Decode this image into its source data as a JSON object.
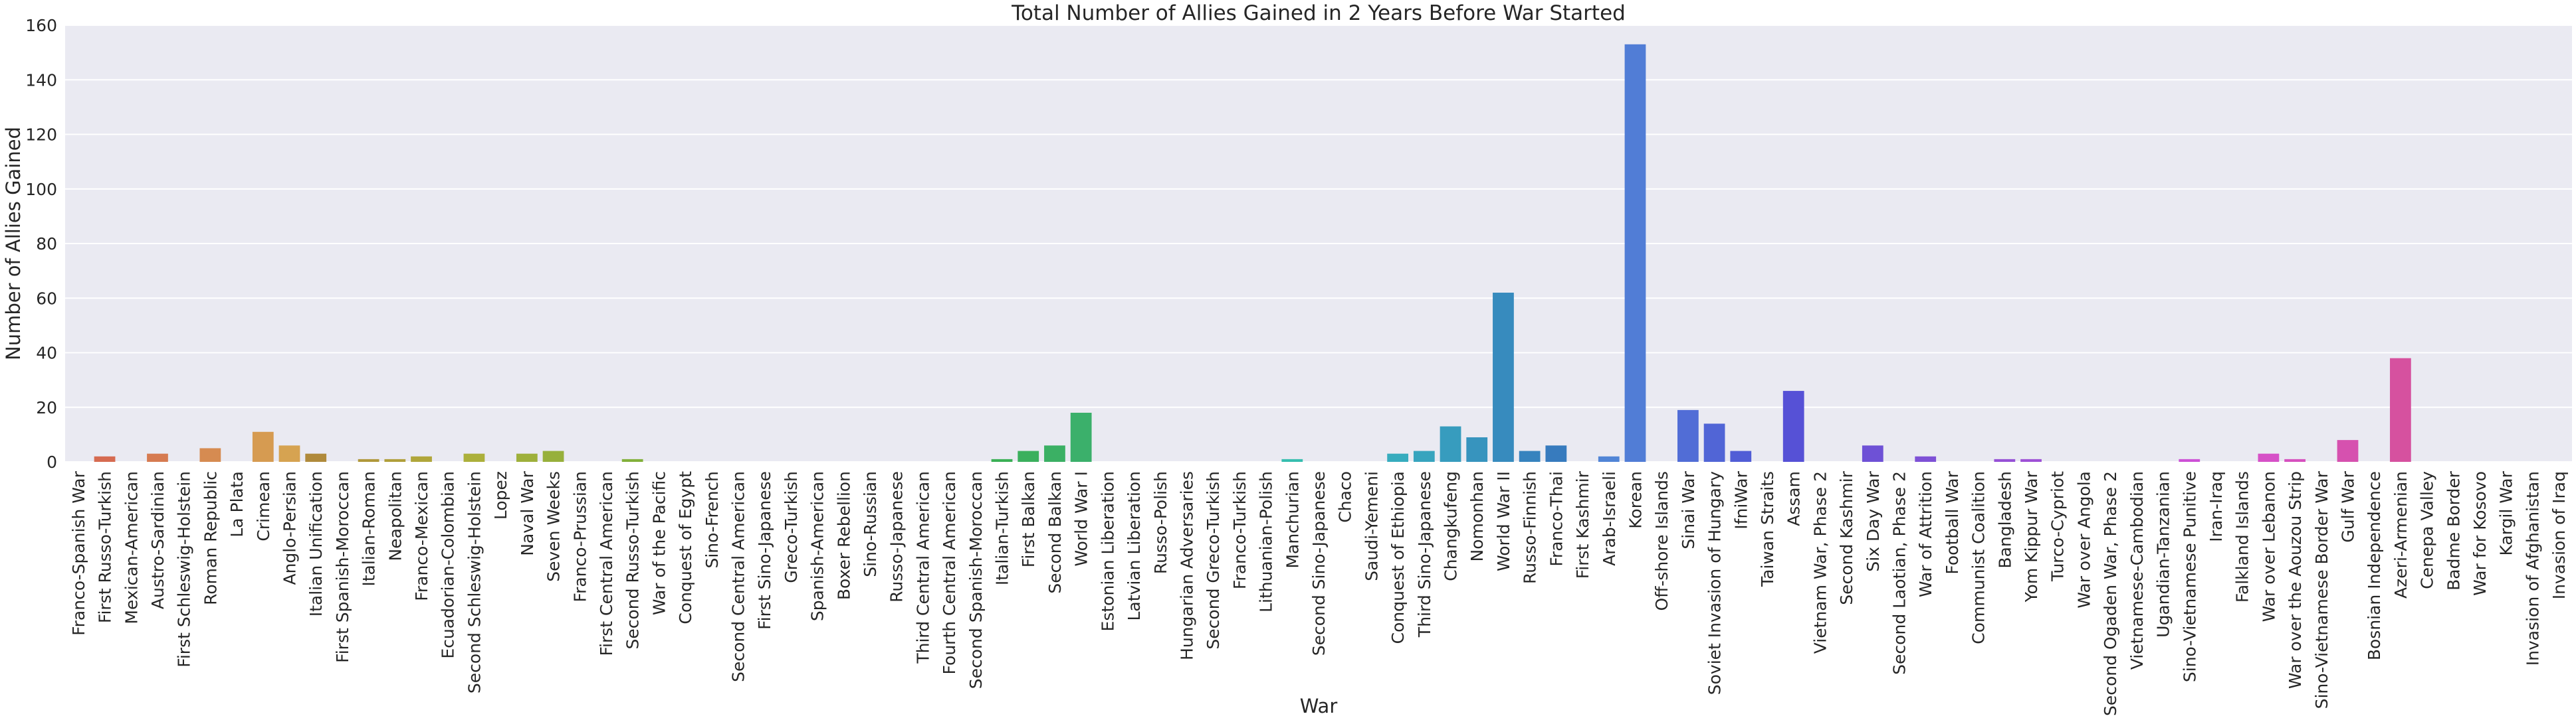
{
  "chart_data": {
    "type": "bar",
    "title": "Total Number of Allies Gained in 2 Years Before War Started",
    "xlabel": "War",
    "ylabel": "Number of Allies Gained",
    "ylim": [
      0,
      160
    ],
    "yticks": [
      0,
      20,
      40,
      60,
      80,
      100,
      120,
      140,
      160
    ],
    "grid": true,
    "legend": "none",
    "background_color": "#EAEAF2",
    "grid_color": "#FFFFFF",
    "categories": [
      "Franco-Spanish War",
      "First Russo-Turkish",
      "Mexican-American",
      "Austro-Sardinian",
      "First Schleswig-Holstein",
      "Roman Republic",
      "La Plata",
      "Crimean",
      "Anglo-Persian",
      "Italian Unification",
      "First Spanish-Moroccan",
      "Italian-Roman",
      "Neapolitan",
      "Franco-Mexican",
      "Ecuadorian-Colombian",
      "Second Schleswig-Holstein",
      "Lopez",
      "Naval War",
      "Seven Weeks",
      "Franco-Prussian",
      "First Central American",
      "Second Russo-Turkish",
      "War of the Pacific",
      "Conquest of Egypt",
      "Sino-French",
      "Second Central American",
      "First Sino-Japanese",
      "Greco-Turkish",
      "Spanish-American",
      "Boxer Rebellion",
      "Sino-Russian",
      "Russo-Japanese",
      "Third Central American",
      "Fourth Central American",
      "Second Spanish-Moroccan",
      "Italian-Turkish",
      "First Balkan",
      "Second Balkan",
      "World War I",
      "Estonian Liberation",
      "Latvian Liberation",
      "Russo-Polish",
      "Hungarian Adversaries",
      "Second Greco-Turkish",
      "Franco-Turkish",
      "Lithuanian-Polish",
      "Manchurian",
      "Second Sino-Japanese",
      "Chaco",
      "Saudi-Yemeni",
      "Conquest of Ethiopia",
      "Third Sino-Japanese",
      "Changkufeng",
      "Nomonhan",
      "World War II",
      "Russo-Finnish",
      "Franco-Thai",
      "First Kashmir",
      "Arab-Israeli",
      "Korean",
      "Off-shore Islands",
      "Sinai War",
      "Soviet Invasion of Hungary",
      "IfniWar",
      "Taiwan Straits",
      "Assam",
      "Vietnam War, Phase 2",
      "Second Kashmir",
      "Six Day War",
      "Second Laotian, Phase 2",
      "War of Attrition",
      "Football War",
      "Communist Coalition",
      "Bangladesh",
      "Yom Kippur War",
      "Turco-Cypriot",
      "War over Angola",
      "Second Ogaden War, Phase 2",
      "Vietnamese-Cambodian",
      "Ugandian-Tanzanian",
      "Sino-Vietnamese Punitive",
      "Iran-Iraq",
      "Falkland Islands",
      "War over Lebanon",
      "War over the Aouzou Strip",
      "Sino-Vietnamese Border War",
      "Gulf War",
      "Bosnian Independence",
      "Azeri-Armenian",
      "Cenepa Valley",
      "Badme Border",
      "War for Kosovo",
      "Kargil War",
      "Invasion of Afghanistan",
      "Invasion of Iraq"
    ],
    "values": [
      0,
      2,
      0,
      3,
      0,
      5,
      0,
      11,
      6,
      3,
      0,
      1,
      1,
      2,
      0,
      3,
      0,
      3,
      4,
      0,
      0,
      1,
      0,
      0,
      0,
      0,
      0,
      0,
      0,
      0,
      0,
      0,
      0,
      0,
      0,
      1,
      4,
      6,
      18,
      0,
      0,
      0,
      0,
      0,
      0,
      0,
      1,
      0,
      0,
      0,
      3,
      4,
      13,
      9,
      62,
      4,
      6,
      0,
      2,
      153,
      0,
      19,
      14,
      4,
      0,
      26,
      0,
      0,
      6,
      0,
      2,
      0,
      0,
      1,
      1,
      0,
      0,
      0,
      0,
      0,
      1,
      0,
      0,
      3,
      1,
      0,
      8,
      0,
      38,
      0,
      0,
      0,
      0,
      0,
      0
    ]
  }
}
